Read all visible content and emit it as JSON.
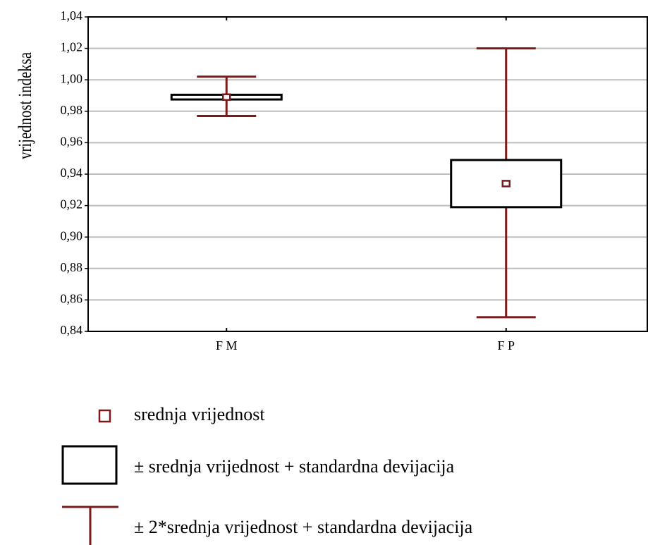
{
  "chart_data": {
    "type": "box",
    "y_label": "vrijednost indeksa",
    "categories": [
      "F M",
      "F P"
    ],
    "mean": [
      0.989,
      0.934
    ],
    "box_low": [
      0.9875,
      0.919
    ],
    "box_high": [
      0.9905,
      0.949
    ],
    "whisker_low": [
      0.977,
      0.849
    ],
    "whisker_high": [
      1.002,
      1.02
    ],
    "mean_label": "srednja vrijednost",
    "box_label": "± srednja vrijednost + standardna devijacija",
    "whisker_label": "± 2*srednja vrijednost + standardna devijacija",
    "mean_color": "#7b1a1a",
    "box_color": "#000000",
    "whisker_color": "#7b1a1a",
    "ylim": [
      0.84,
      1.04
    ],
    "yticks": [
      {
        "value": 0.84,
        "label": "0,84"
      },
      {
        "value": 0.86,
        "label": "0,86"
      },
      {
        "value": 0.88,
        "label": "0,88"
      },
      {
        "value": 0.9,
        "label": "0,90"
      },
      {
        "value": 0.92,
        "label": "0,92"
      },
      {
        "value": 0.94,
        "label": "0,94"
      },
      {
        "value": 0.96,
        "label": "0,96"
      },
      {
        "value": 0.98,
        "label": "0,98"
      },
      {
        "value": 1.0,
        "label": "1,00"
      },
      {
        "value": 1.02,
        "label": "1,02"
      },
      {
        "value": 1.04,
        "label": "1,04"
      }
    ],
    "grid": true
  }
}
